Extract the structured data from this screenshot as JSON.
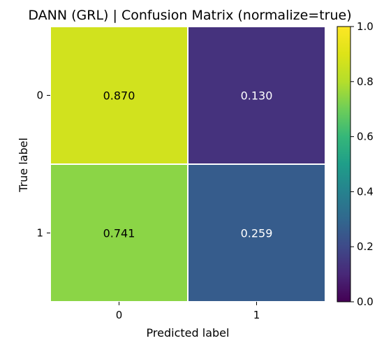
{
  "chart_data": {
    "type": "heatmap",
    "title": "DANN (GRL) | Confusion Matrix (normalize=true)",
    "xlabel": "Predicted label",
    "ylabel": "True label",
    "x_categories": [
      "0",
      "1"
    ],
    "y_categories": [
      "0",
      "1"
    ],
    "values": [
      [
        0.87,
        0.13
      ],
      [
        0.741,
        0.259
      ]
    ],
    "cell_labels": [
      [
        "0.870",
        "0.130"
      ],
      [
        "0.741",
        "0.259"
      ]
    ],
    "colormap": "viridis",
    "colorbar": {
      "range": [
        0.0,
        1.0
      ],
      "ticks": [
        0.0,
        0.2,
        0.4,
        0.6,
        0.8,
        1.0
      ],
      "tick_labels": [
        "0.0",
        "0.2",
        "0.4",
        "0.6",
        "0.8",
        "1.0"
      ]
    },
    "grid": false,
    "cell_border_color": "#ffffff"
  }
}
